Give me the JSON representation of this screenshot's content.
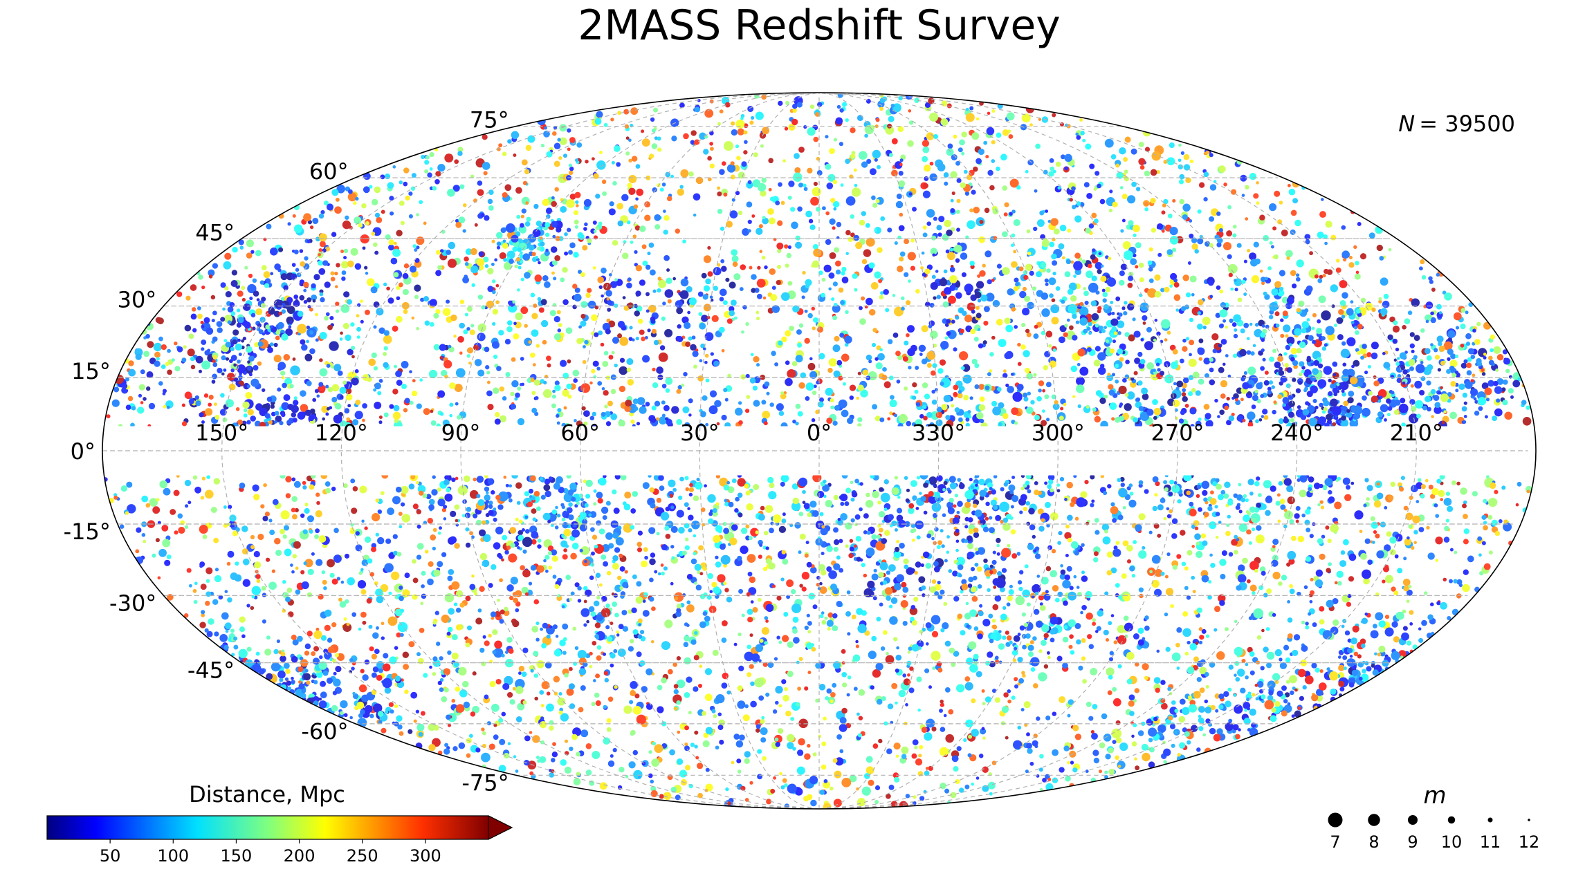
{
  "chart_data": {
    "type": "scatter",
    "projection": "mollweide",
    "title": "2MASS Redshift Survey",
    "coordinate_system": "galactic",
    "annotation_prefix": "N",
    "annotation": "= 39500",
    "count": 39500,
    "x_ticks": [
      "150°",
      "120°",
      "90°",
      "60°",
      "30°",
      "0°",
      "330°",
      "300°",
      "270°",
      "240°",
      "210°"
    ],
    "x_tick_values": [
      150,
      120,
      90,
      60,
      30,
      0,
      330,
      300,
      270,
      240,
      210
    ],
    "y_ticks": [
      "75°",
      "60°",
      "45°",
      "30°",
      "15°",
      "0°",
      "-15°",
      "-30°",
      "-45°",
      "-60°",
      "-75°"
    ],
    "y_tick_values": [
      75,
      60,
      45,
      30,
      15,
      0,
      -15,
      -30,
      -45,
      -60,
      -75
    ],
    "masked_band_deg": [
      -5,
      5
    ],
    "grid": true,
    "colorbar": {
      "label": "Distance, Mpc",
      "ticks": [
        "50",
        "100",
        "150",
        "200",
        "250",
        "300"
      ],
      "tick_values": [
        50,
        100,
        150,
        200,
        250,
        300
      ],
      "range": [
        0,
        350
      ],
      "extend": "max",
      "colormap": "jet",
      "placement": "bottom-left"
    },
    "size_legend": {
      "title": "m",
      "labels": [
        "7",
        "8",
        "9",
        "10",
        "11",
        "12"
      ],
      "values": [
        7,
        8,
        9,
        10,
        11,
        12
      ],
      "placement": "bottom-right"
    },
    "colors": {
      "grid": "#b0b0b0",
      "outline": "#000000",
      "background": "#ffffff"
    }
  }
}
